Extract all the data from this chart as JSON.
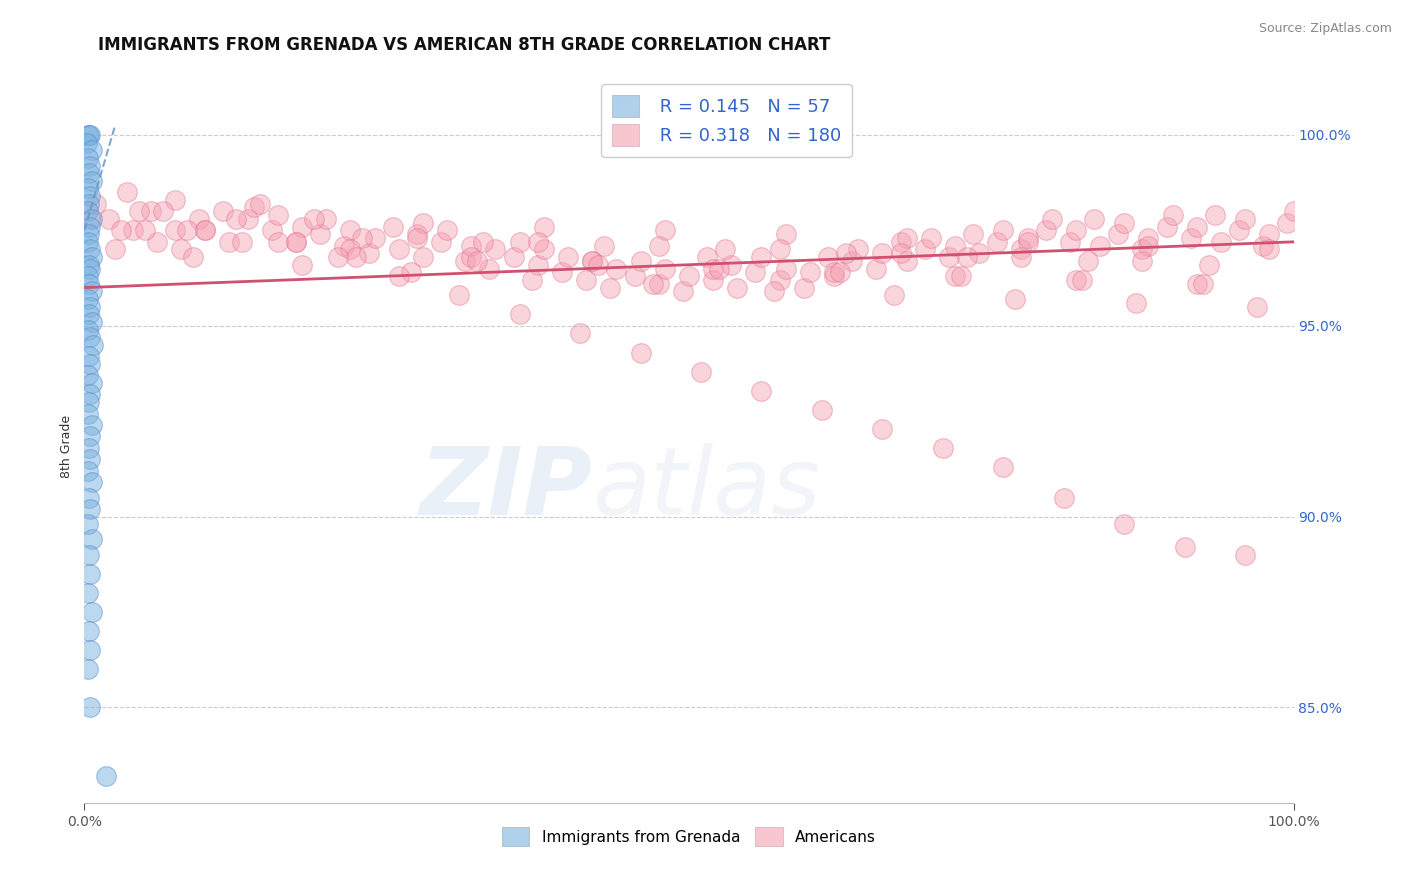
{
  "title": "IMMIGRANTS FROM GRENADA VS AMERICAN 8TH GRADE CORRELATION CHART",
  "source_text": "Source: ZipAtlas.com",
  "ylabel": "8th Grade",
  "x_min": 0.0,
  "x_max": 100.0,
  "y_min": 82.5,
  "y_max": 101.2,
  "y_ticks": [
    85.0,
    90.0,
    95.0,
    100.0
  ],
  "x_ticks": [
    0.0,
    100.0
  ],
  "x_tick_labels": [
    "0.0%",
    "100.0%"
  ],
  "y_tick_labels": [
    "85.0%",
    "90.0%",
    "95.0%",
    "100.0%"
  ],
  "legend_items": [
    {
      "label": "Immigrants from Grenada",
      "color": "#7ab3e0",
      "R": 0.145,
      "N": 57
    },
    {
      "label": "Americans",
      "color": "#f4a0b0",
      "R": 0.318,
      "N": 180
    }
  ],
  "blue_scatter_x": [
    0.3,
    0.4,
    0.5,
    0.2,
    0.6,
    0.3,
    0.5,
    0.4,
    0.6,
    0.3,
    0.5,
    0.4,
    0.3,
    0.6,
    0.5,
    0.4,
    0.3,
    0.5,
    0.6,
    0.4,
    0.5,
    0.3,
    0.4,
    0.6,
    0.3,
    0.5,
    0.4,
    0.6,
    0.3,
    0.5,
    0.7,
    0.4,
    0.5,
    0.3,
    0.6,
    0.5,
    0.4,
    0.3,
    0.6,
    0.5,
    0.4,
    0.5,
    0.3,
    0.6,
    0.4,
    0.5,
    0.3,
    0.6,
    0.4,
    0.5,
    0.3,
    0.6,
    0.4,
    0.5,
    0.3,
    0.5,
    1.8
  ],
  "blue_scatter_y": [
    100.0,
    100.0,
    100.0,
    99.8,
    99.6,
    99.4,
    99.2,
    99.0,
    98.8,
    98.6,
    98.4,
    98.2,
    98.0,
    97.8,
    97.6,
    97.4,
    97.2,
    97.0,
    96.8,
    96.6,
    96.5,
    96.3,
    96.1,
    95.9,
    95.7,
    95.5,
    95.3,
    95.1,
    94.9,
    94.7,
    94.5,
    94.2,
    94.0,
    93.7,
    93.5,
    93.2,
    93.0,
    92.7,
    92.4,
    92.1,
    91.8,
    91.5,
    91.2,
    90.9,
    90.5,
    90.2,
    89.8,
    89.4,
    89.0,
    88.5,
    88.0,
    87.5,
    87.0,
    86.5,
    86.0,
    85.0,
    83.2
  ],
  "pink_scatter_x": [
    1.0,
    2.0,
    3.5,
    4.0,
    5.5,
    6.0,
    7.5,
    8.0,
    9.5,
    10.0,
    11.5,
    12.0,
    13.5,
    14.0,
    15.5,
    16.0,
    17.5,
    18.0,
    19.5,
    20.0,
    21.5,
    22.0,
    23.5,
    24.0,
    25.5,
    26.0,
    27.5,
    28.0,
    29.5,
    30.0,
    31.5,
    32.0,
    33.5,
    34.0,
    35.5,
    36.0,
    37.5,
    38.0,
    39.5,
    40.0,
    41.5,
    42.0,
    43.5,
    44.0,
    45.5,
    46.0,
    47.5,
    48.0,
    49.5,
    50.0,
    51.5,
    52.0,
    53.5,
    54.0,
    55.5,
    56.0,
    57.5,
    58.0,
    59.5,
    60.0,
    61.5,
    62.0,
    63.5,
    64.0,
    65.5,
    66.0,
    67.5,
    68.0,
    69.5,
    70.0,
    71.5,
    72.0,
    73.5,
    74.0,
    75.5,
    76.0,
    77.5,
    78.0,
    79.5,
    80.0,
    81.5,
    82.0,
    83.5,
    84.0,
    85.5,
    86.0,
    87.5,
    88.0,
    89.5,
    90.0,
    91.5,
    92.0,
    93.5,
    94.0,
    95.5,
    96.0,
    97.5,
    98.0,
    99.5,
    100.0,
    3.0,
    6.5,
    10.0,
    14.5,
    19.0,
    23.0,
    28.0,
    33.0,
    38.0,
    43.0,
    48.0,
    53.0,
    58.0,
    63.0,
    68.0,
    73.0,
    78.0,
    83.0,
    88.0,
    93.0,
    98.0,
    5.0,
    9.0,
    13.0,
    18.0,
    22.0,
    27.0,
    32.0,
    37.0,
    42.0,
    47.0,
    52.0,
    57.0,
    62.0,
    67.0,
    72.0,
    77.0,
    82.0,
    87.0,
    92.0,
    97.0,
    2.5,
    7.5,
    12.5,
    17.5,
    22.5,
    27.5,
    32.5,
    37.5,
    42.5,
    47.5,
    52.5,
    57.5,
    62.5,
    67.5,
    72.5,
    77.5,
    82.5,
    87.5,
    92.5,
    0.5,
    4.5,
    8.5,
    16.0,
    21.0,
    26.0,
    31.0,
    36.0,
    41.0,
    46.0,
    51.0,
    56.0,
    61.0,
    66.0,
    71.0,
    76.0,
    81.0,
    86.0,
    91.0,
    96.0
  ],
  "pink_scatter_y": [
    98.2,
    97.8,
    98.5,
    97.5,
    98.0,
    97.2,
    98.3,
    97.0,
    97.8,
    97.5,
    98.0,
    97.2,
    97.8,
    98.1,
    97.5,
    97.9,
    97.2,
    97.6,
    97.4,
    97.8,
    97.1,
    97.5,
    96.9,
    97.3,
    97.6,
    97.0,
    97.4,
    96.8,
    97.2,
    97.5,
    96.7,
    97.1,
    96.5,
    97.0,
    96.8,
    97.2,
    96.6,
    97.0,
    96.4,
    96.8,
    96.2,
    96.7,
    96.0,
    96.5,
    96.3,
    96.7,
    96.1,
    96.5,
    95.9,
    96.3,
    96.8,
    96.2,
    96.6,
    96.0,
    96.4,
    96.8,
    96.2,
    96.5,
    96.0,
    96.4,
    96.8,
    96.3,
    96.7,
    97.0,
    96.5,
    96.9,
    97.2,
    96.7,
    97.0,
    97.3,
    96.8,
    97.1,
    97.4,
    96.9,
    97.2,
    97.5,
    97.0,
    97.3,
    97.5,
    97.8,
    97.2,
    97.5,
    97.8,
    97.1,
    97.4,
    97.7,
    97.0,
    97.3,
    97.6,
    97.9,
    97.3,
    97.6,
    97.9,
    97.2,
    97.5,
    97.8,
    97.1,
    97.4,
    97.7,
    98.0,
    97.5,
    98.0,
    97.5,
    98.2,
    97.8,
    97.3,
    97.7,
    97.2,
    97.6,
    97.1,
    97.5,
    97.0,
    97.4,
    96.9,
    97.3,
    96.8,
    97.2,
    96.7,
    97.1,
    96.6,
    97.0,
    97.5,
    96.8,
    97.2,
    96.6,
    97.0,
    96.4,
    96.8,
    96.2,
    96.7,
    96.1,
    96.5,
    95.9,
    96.4,
    95.8,
    96.3,
    95.7,
    96.2,
    95.6,
    96.1,
    95.5,
    97.0,
    97.5,
    97.8,
    97.2,
    96.8,
    97.3,
    96.7,
    97.2,
    96.6,
    97.1,
    96.5,
    97.0,
    96.4,
    96.9,
    96.3,
    96.8,
    96.2,
    96.7,
    96.1,
    97.8,
    98.0,
    97.5,
    97.2,
    96.8,
    96.3,
    95.8,
    95.3,
    94.8,
    94.3,
    93.8,
    93.3,
    92.8,
    92.3,
    91.8,
    91.3,
    90.5,
    89.8,
    89.2,
    89.0
  ],
  "blue_trendline_x": [
    0.0,
    2.5
  ],
  "blue_trendline_y": [
    97.5,
    100.2
  ],
  "pink_trendline_x": [
    0.0,
    100.0
  ],
  "pink_trendline_y": [
    96.0,
    97.2
  ],
  "blue_color": "#7ab3e0",
  "blue_edge_color": "#5588cc",
  "pink_color": "#f4a0b0",
  "pink_edge_color": "#e07090",
  "blue_line_color": "#6699cc",
  "pink_line_color": "#d05070",
  "background_color": "#ffffff",
  "watermark_text": "ZIPatlas",
  "title_fontsize": 12,
  "axis_label_fontsize": 9,
  "tick_fontsize": 10,
  "legend_R_color": "#3366cc",
  "legend_N_color": "#3366cc"
}
